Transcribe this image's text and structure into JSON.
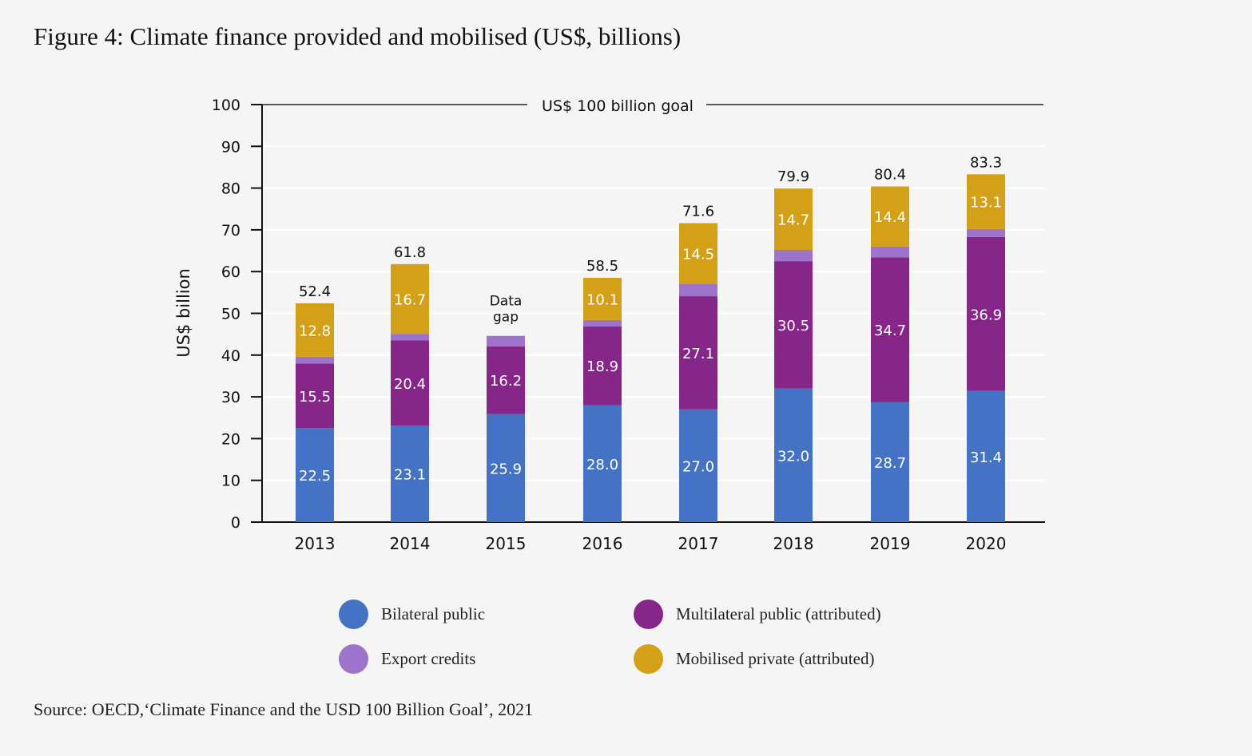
{
  "title": "Figure 4: Climate finance provided and mobilised (US$, billions)",
  "source": "Source: OECD,‘Climate Finance and the USD 100 Billion Goal’, 2021",
  "chart_data": {
    "type": "bar",
    "stacked": true,
    "title": "Figure 4: Climate finance provided and mobilised (US$, billions)",
    "xlabel": "",
    "ylabel": "US$ billion",
    "ylim": [
      0,
      100
    ],
    "yticks": [
      "0",
      "10",
      "20",
      "30",
      "40",
      "50",
      "60",
      "70",
      "80",
      "90",
      "100"
    ],
    "grid": true,
    "categories": [
      "2013",
      "2014",
      "2015",
      "2016",
      "2017",
      "2018",
      "2019",
      "2020"
    ],
    "series": [
      {
        "name": "Bilateral public",
        "color": "#4472c4",
        "values": [
          22.5,
          23.1,
          25.9,
          28.0,
          27.0,
          32.0,
          28.7,
          31.4
        ],
        "labels": [
          "22.5",
          "23.1",
          "25.9",
          "28.0",
          "27.0",
          "32.0",
          "28.7",
          "31.4"
        ]
      },
      {
        "name": "Multilateral public (attributed)",
        "color": "#862689",
        "values": [
          15.5,
          20.4,
          16.2,
          18.9,
          27.1,
          30.5,
          34.7,
          36.9
        ],
        "labels": [
          "15.5",
          "20.4",
          "16.2",
          "18.9",
          "27.1",
          "30.5",
          "34.7",
          "36.9"
        ]
      },
      {
        "name": "Export credits",
        "color": "#9d73cb",
        "values": [
          1.6,
          1.6,
          2.5,
          1.5,
          3.0,
          2.7,
          2.6,
          1.9
        ],
        "labels": [
          "",
          "",
          "",
          "",
          "",
          "",
          "",
          ""
        ]
      },
      {
        "name": "Mobilised private (attributed)",
        "color": "#d4a017",
        "values": [
          12.8,
          16.7,
          0,
          10.1,
          14.5,
          14.7,
          14.4,
          13.1
        ],
        "labels": [
          "12.8",
          "16.7",
          "",
          "10.1",
          "14.5",
          "14.7",
          "14.4",
          "13.1"
        ]
      }
    ],
    "totals": [
      "52.4",
      "61.8",
      "Data gap",
      "58.5",
      "71.6",
      "79.9",
      "80.4",
      "83.3"
    ],
    "annotation": {
      "label": "US$ 100 billion goal",
      "value": 100
    },
    "legend_position": "bottom"
  }
}
